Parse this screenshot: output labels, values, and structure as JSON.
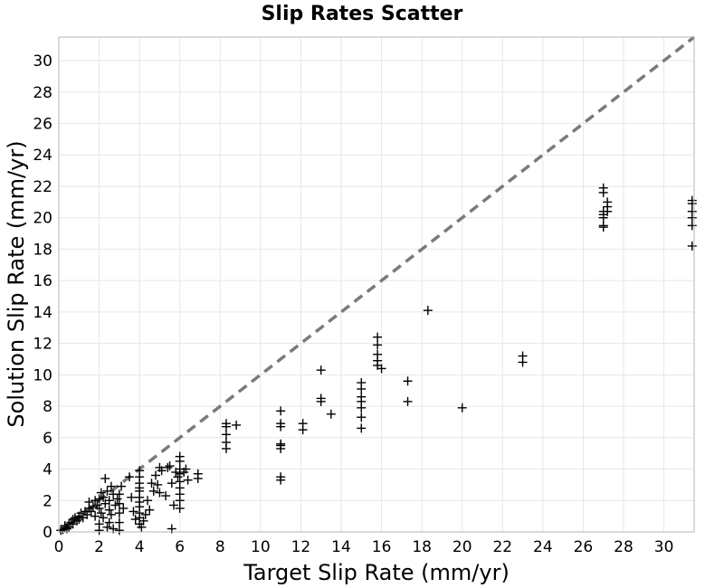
{
  "chart_data": {
    "type": "scatter",
    "title": "Slip Rates Scatter",
    "xlabel": "Target Slip Rate (mm/yr)",
    "ylabel": "Solution Slip Rate (mm/yr)",
    "xlim": [
      0,
      31.5
    ],
    "ylim": [
      0,
      31.5
    ],
    "xticks": [
      "0",
      "2",
      "4",
      "6",
      "8",
      "10",
      "12",
      "14",
      "16",
      "18",
      "20",
      "22",
      "24",
      "26",
      "28",
      "30"
    ],
    "yticks": [
      "0",
      "2",
      "4",
      "6",
      "8",
      "10",
      "12",
      "14",
      "16",
      "18",
      "20",
      "22",
      "24",
      "26",
      "28",
      "30"
    ],
    "grid": true,
    "marker": "plus",
    "marker_color": "#000000",
    "reference_line": {
      "from": [
        0,
        0
      ],
      "to": [
        31.5,
        31.5
      ],
      "style": "dashed",
      "color": "#7a7a7a"
    },
    "points": [
      [
        0.1,
        0.1
      ],
      [
        0.2,
        0.15
      ],
      [
        0.3,
        0.25
      ],
      [
        0.3,
        0.4
      ],
      [
        0.4,
        0.2
      ],
      [
        0.5,
        0.5
      ],
      [
        0.5,
        0.3
      ],
      [
        0.6,
        0.6
      ],
      [
        0.7,
        0.5
      ],
      [
        0.7,
        0.8
      ],
      [
        0.8,
        0.9
      ],
      [
        0.9,
        0.7
      ],
      [
        1.0,
        1.0
      ],
      [
        1.0,
        0.8
      ],
      [
        1.1,
        1.2
      ],
      [
        1.2,
        0.9
      ],
      [
        1.3,
        1.3
      ],
      [
        1.4,
        1.1
      ],
      [
        1.5,
        1.5
      ],
      [
        1.5,
        1.9
      ],
      [
        1.6,
        1.3
      ],
      [
        1.7,
        1.6
      ],
      [
        1.8,
        1.0
      ],
      [
        1.8,
        2.0
      ],
      [
        1.9,
        1.7
      ],
      [
        2.0,
        2.1
      ],
      [
        2.0,
        1.5
      ],
      [
        2.0,
        0.5
      ],
      [
        2.0,
        0.1
      ],
      [
        2.1,
        2.5
      ],
      [
        2.1,
        1.2
      ],
      [
        2.2,
        2.2
      ],
      [
        2.2,
        0.9
      ],
      [
        2.3,
        3.4
      ],
      [
        2.3,
        1.8
      ],
      [
        2.4,
        2.6
      ],
      [
        2.4,
        0.3
      ],
      [
        2.5,
        2.0
      ],
      [
        2.5,
        1.4
      ],
      [
        2.5,
        0.6
      ],
      [
        2.6,
        2.9
      ],
      [
        2.6,
        1.1
      ],
      [
        2.7,
        2.4
      ],
      [
        2.7,
        0.2
      ],
      [
        2.8,
        1.7
      ],
      [
        2.9,
        2.1
      ],
      [
        3.0,
        2.4
      ],
      [
        3.0,
        1.8
      ],
      [
        3.0,
        1.2
      ],
      [
        3.0,
        0.6
      ],
      [
        3.0,
        0.1
      ],
      [
        3.1,
        2.9
      ],
      [
        3.2,
        1.5
      ],
      [
        3.5,
        3.5
      ],
      [
        3.6,
        2.2
      ],
      [
        3.7,
        1.3
      ],
      [
        3.8,
        0.8
      ],
      [
        4.0,
        3.9
      ],
      [
        4.0,
        3.5
      ],
      [
        4.0,
        3.1
      ],
      [
        4.0,
        2.8
      ],
      [
        4.0,
        2.6
      ],
      [
        4.0,
        2.2
      ],
      [
        4.0,
        1.9
      ],
      [
        4.0,
        1.6
      ],
      [
        4.0,
        1.2
      ],
      [
        4.0,
        0.9
      ],
      [
        4.0,
        0.5
      ],
      [
        4.1,
        0.3
      ],
      [
        4.2,
        0.7
      ],
      [
        4.3,
        1.1
      ],
      [
        4.4,
        2.0
      ],
      [
        4.5,
        1.4
      ],
      [
        4.6,
        3.1
      ],
      [
        4.7,
        2.6
      ],
      [
        4.8,
        3.6
      ],
      [
        4.9,
        3.0
      ],
      [
        5.0,
        4.1
      ],
      [
        5.0,
        2.5
      ],
      [
        5.1,
        3.9
      ],
      [
        5.3,
        2.3
      ],
      [
        5.4,
        4.1
      ],
      [
        5.5,
        4.2
      ],
      [
        5.6,
        3.1
      ],
      [
        5.6,
        0.2
      ],
      [
        5.7,
        1.7
      ],
      [
        5.8,
        3.8
      ],
      [
        5.9,
        3.5
      ],
      [
        6.0,
        4.8
      ],
      [
        6.0,
        4.5
      ],
      [
        6.0,
        4.0
      ],
      [
        6.0,
        3.7
      ],
      [
        6.0,
        3.2
      ],
      [
        6.0,
        2.8
      ],
      [
        6.0,
        2.4
      ],
      [
        6.0,
        2.0
      ],
      [
        6.0,
        1.5
      ],
      [
        6.2,
        3.8
      ],
      [
        6.3,
        4.0
      ],
      [
        6.4,
        3.3
      ],
      [
        6.9,
        3.7
      ],
      [
        6.9,
        3.4
      ],
      [
        8.3,
        6.9
      ],
      [
        8.3,
        6.7
      ],
      [
        8.3,
        6.2
      ],
      [
        8.3,
        5.7
      ],
      [
        8.3,
        5.3
      ],
      [
        8.8,
        6.8
      ],
      [
        11.0,
        7.7
      ],
      [
        11.0,
        6.9
      ],
      [
        11.0,
        6.7
      ],
      [
        11.0,
        5.6
      ],
      [
        11.0,
        5.5
      ],
      [
        11.0,
        5.3
      ],
      [
        11.0,
        3.5
      ],
      [
        11.0,
        3.3
      ],
      [
        12.1,
        6.9
      ],
      [
        12.1,
        6.5
      ],
      [
        13.0,
        10.3
      ],
      [
        13.0,
        8.5
      ],
      [
        13.0,
        8.3
      ],
      [
        13.5,
        7.5
      ],
      [
        15.0,
        9.5
      ],
      [
        15.0,
        9.1
      ],
      [
        15.0,
        8.6
      ],
      [
        15.0,
        8.3
      ],
      [
        15.0,
        7.9
      ],
      [
        15.0,
        7.3
      ],
      [
        15.0,
        6.6
      ],
      [
        15.8,
        12.4
      ],
      [
        15.8,
        11.9
      ],
      [
        15.8,
        11.3
      ],
      [
        15.8,
        10.9
      ],
      [
        15.8,
        10.6
      ],
      [
        16.0,
        10.4
      ],
      [
        17.3,
        9.6
      ],
      [
        17.3,
        8.3
      ],
      [
        18.3,
        14.1
      ],
      [
        20.0,
        7.9
      ],
      [
        23.0,
        11.2
      ],
      [
        23.0,
        10.8
      ],
      [
        27.0,
        21.9
      ],
      [
        27.0,
        21.6
      ],
      [
        27.0,
        20.4
      ],
      [
        27.0,
        20.2
      ],
      [
        27.0,
        20.0
      ],
      [
        27.0,
        19.5
      ],
      [
        27.0,
        19.4
      ],
      [
        27.2,
        21.0
      ],
      [
        27.2,
        20.7
      ],
      [
        27.2,
        20.4
      ],
      [
        31.4,
        21.1
      ],
      [
        31.4,
        20.9
      ],
      [
        31.4,
        20.4
      ],
      [
        31.4,
        20.0
      ],
      [
        31.4,
        19.5
      ],
      [
        31.4,
        18.2
      ]
    ]
  }
}
